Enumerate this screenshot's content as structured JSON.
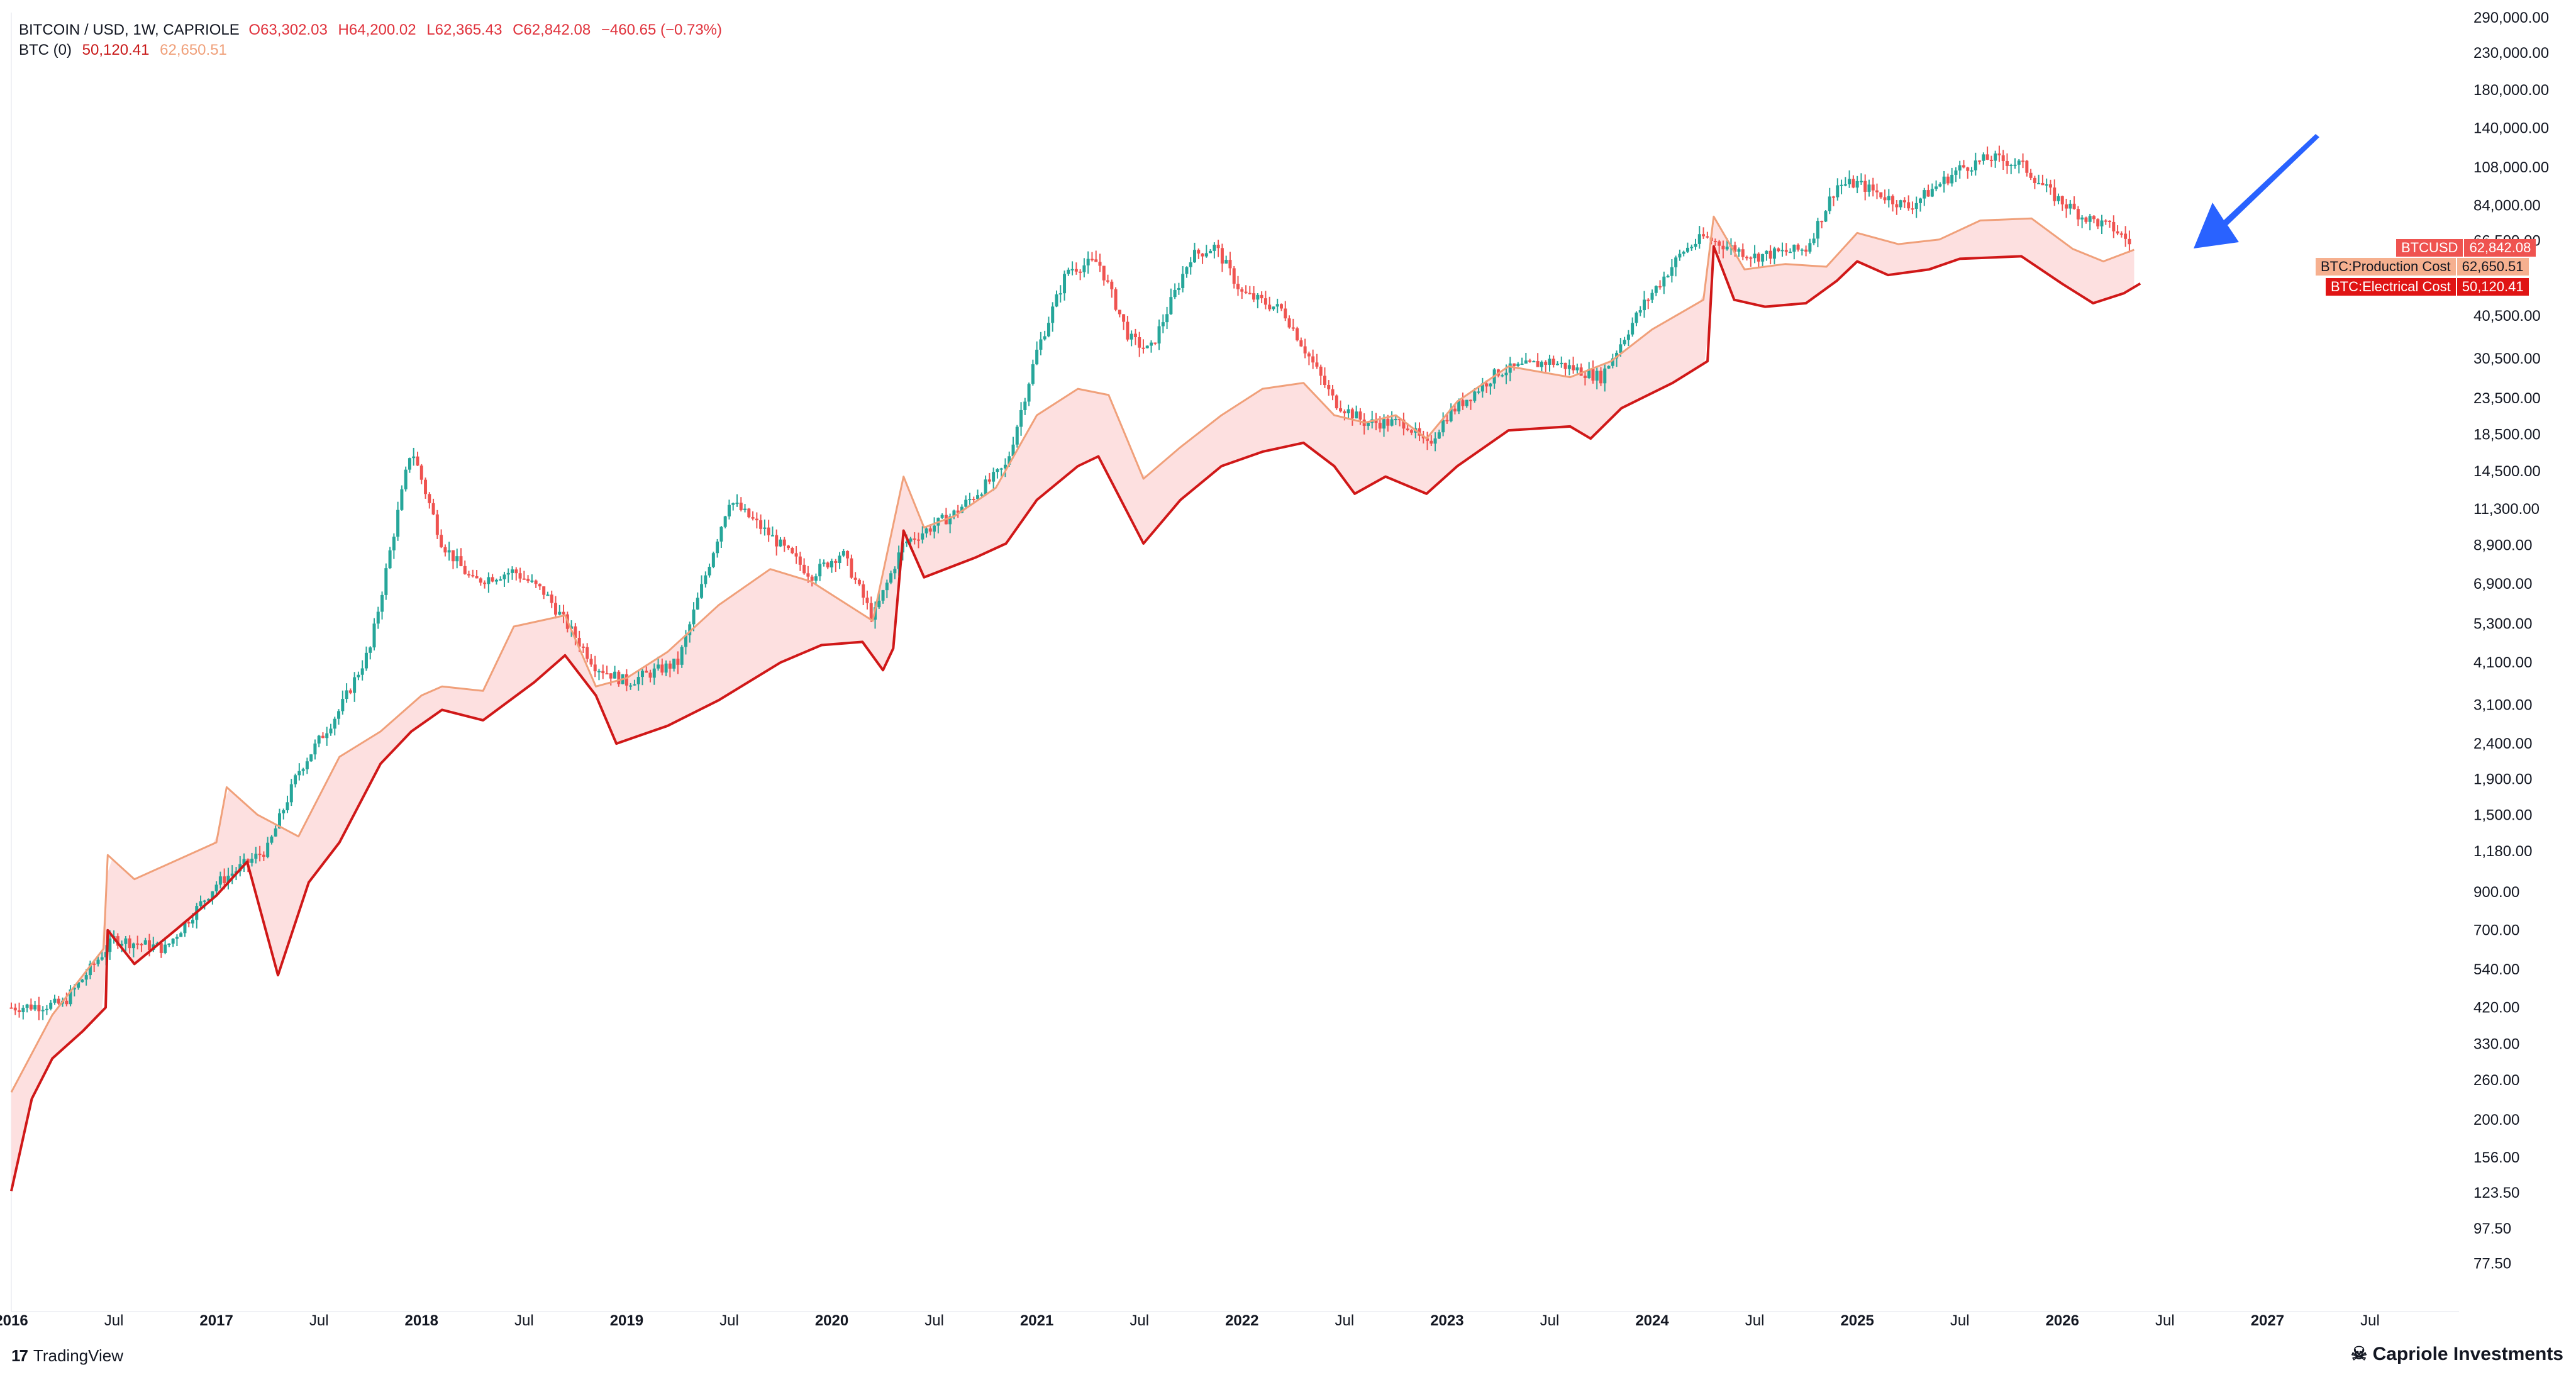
{
  "header": {
    "symbol_line": "BITCOIN / USD, 1W, CAPRIOLE",
    "ohlc": {
      "o": "O63,302.03",
      "h": "H64,200.02",
      "l": "L62,365.43",
      "c": "C62,842.08",
      "chg": "−460.65 (−0.73%)"
    },
    "indicator_name": "BTC (0)",
    "indicator_val1": "50,120.41",
    "indicator_val2": "62,650.51"
  },
  "footer": {
    "left_brand": "TradingView",
    "right_brand": "Capriole Investments"
  },
  "colors": {
    "up": "#26a69a",
    "down": "#ef5350",
    "production": "#f0a07a",
    "electrical": "#d01818",
    "band_fill": "#fde0e0",
    "arrow": "#2962ff"
  },
  "chart_data": {
    "type": "line",
    "y_scale": "log",
    "ylim": [
      60,
      300000
    ],
    "x_range": [
      "2016-01",
      "2027-09"
    ],
    "x_ticks": [
      "2016",
      "Jul",
      "2017",
      "Jul",
      "2018",
      "Jul",
      "2019",
      "Jul",
      "2020",
      "Jul",
      "2021",
      "Jul",
      "2022",
      "Jul",
      "2023",
      "Jul",
      "2024",
      "Jul",
      "2025",
      "Jul",
      "2026",
      "Jul",
      "2027",
      "Jul"
    ],
    "y_ticks": [
      {
        "v": 290000,
        "label": "290,000.00"
      },
      {
        "v": 230000,
        "label": "230,000.00"
      },
      {
        "v": 180000,
        "label": "180,000.00"
      },
      {
        "v": 140000,
        "label": "140,000.00"
      },
      {
        "v": 108000,
        "label": "108,000.00"
      },
      {
        "v": 84000,
        "label": "84,000.00"
      },
      {
        "v": 66500,
        "label": "66,500.00"
      },
      {
        "v": 40500,
        "label": "40,500.00"
      },
      {
        "v": 30500,
        "label": "30,500.00"
      },
      {
        "v": 23500,
        "label": "23,500.00"
      },
      {
        "v": 18500,
        "label": "18,500.00"
      },
      {
        "v": 14500,
        "label": "14,500.00"
      },
      {
        "v": 11300,
        "label": "11,300.00"
      },
      {
        "v": 8900,
        "label": "8,900.00"
      },
      {
        "v": 6900,
        "label": "6,900.00"
      },
      {
        "v": 5300,
        "label": "5,300.00"
      },
      {
        "v": 4100,
        "label": "4,100.00"
      },
      {
        "v": 3100,
        "label": "3,100.00"
      },
      {
        "v": 2400,
        "label": "2,400.00"
      },
      {
        "v": 1900,
        "label": "1,900.00"
      },
      {
        "v": 1500,
        "label": "1,500.00"
      },
      {
        "v": 1180,
        "label": "1,180.00"
      },
      {
        "v": 900,
        "label": "900.00"
      },
      {
        "v": 700,
        "label": "700.00"
      },
      {
        "v": 540,
        "label": "540.00"
      },
      {
        "v": 420,
        "label": "420.00"
      },
      {
        "v": 330,
        "label": "330.00"
      },
      {
        "v": 260,
        "label": "260.00"
      },
      {
        "v": 200,
        "label": "200.00"
      },
      {
        "v": 156,
        "label": "156.00"
      },
      {
        "v": 123.5,
        "label": "123.50"
      },
      {
        "v": 97.5,
        "label": "97.50"
      },
      {
        "v": 77.5,
        "label": "77.50"
      }
    ],
    "series": [
      {
        "name": "BTCUSD",
        "last": "62,842.08",
        "points": [
          [
            2016.0,
            420
          ],
          [
            2016.25,
            430
          ],
          [
            2016.5,
            660
          ],
          [
            2016.75,
            620
          ],
          [
            2017.0,
            950
          ],
          [
            2017.25,
            1200
          ],
          [
            2017.4,
            2000
          ],
          [
            2017.6,
            3000
          ],
          [
            2017.75,
            4500
          ],
          [
            2017.95,
            17000
          ],
          [
            2018.1,
            9000
          ],
          [
            2018.25,
            7000
          ],
          [
            2018.45,
            7500
          ],
          [
            2018.6,
            6500
          ],
          [
            2018.85,
            4000
          ],
          [
            2019.0,
            3600
          ],
          [
            2019.25,
            4100
          ],
          [
            2019.5,
            12000
          ],
          [
            2019.7,
            9500
          ],
          [
            2019.9,
            7300
          ],
          [
            2020.05,
            8500
          ],
          [
            2020.2,
            5500
          ],
          [
            2020.35,
            9000
          ],
          [
            2020.6,
            11000
          ],
          [
            2020.85,
            15000
          ],
          [
            2021.0,
            32000
          ],
          [
            2021.15,
            55000
          ],
          [
            2021.3,
            58000
          ],
          [
            2021.45,
            35000
          ],
          [
            2021.55,
            32000
          ],
          [
            2021.75,
            60000
          ],
          [
            2021.87,
            64000
          ],
          [
            2022.0,
            47000
          ],
          [
            2022.2,
            42000
          ],
          [
            2022.45,
            23000
          ],
          [
            2022.6,
            20000
          ],
          [
            2022.8,
            20000
          ],
          [
            2022.9,
            17000
          ],
          [
            2023.0,
            21000
          ],
          [
            2023.25,
            28000
          ],
          [
            2023.5,
            30000
          ],
          [
            2023.75,
            27000
          ],
          [
            2023.95,
            43000
          ],
          [
            2024.15,
            62000
          ],
          [
            2024.25,
            68000
          ],
          [
            2024.5,
            60000
          ],
          [
            2024.75,
            63000
          ],
          [
            2024.9,
            96000
          ],
          [
            2025.0,
            97000
          ],
          [
            2025.25,
            83000
          ],
          [
            2025.5,
            107000
          ],
          [
            2025.65,
            115000
          ],
          [
            2025.8,
            110000
          ],
          [
            2025.95,
            90000
          ],
          [
            2026.1,
            78000
          ],
          [
            2026.25,
            72000
          ],
          [
            2026.35,
            64000
          ]
        ]
      },
      {
        "name": "BTC:Production Cost",
        "last": "62,650.51",
        "points": [
          [
            2016.0,
            240
          ],
          [
            2016.2,
            400
          ],
          [
            2016.45,
            620
          ],
          [
            2016.47,
            1150
          ],
          [
            2016.6,
            980
          ],
          [
            2017.0,
            1250
          ],
          [
            2017.05,
            1800
          ],
          [
            2017.2,
            1500
          ],
          [
            2017.4,
            1300
          ],
          [
            2017.6,
            2200
          ],
          [
            2017.8,
            2600
          ],
          [
            2018.0,
            3300
          ],
          [
            2018.1,
            3500
          ],
          [
            2018.3,
            3400
          ],
          [
            2018.45,
            5200
          ],
          [
            2018.7,
            5600
          ],
          [
            2018.85,
            3500
          ],
          [
            2019.0,
            3700
          ],
          [
            2019.2,
            4400
          ],
          [
            2019.45,
            6000
          ],
          [
            2019.7,
            7600
          ],
          [
            2019.9,
            7000
          ],
          [
            2020.2,
            5400
          ],
          [
            2020.35,
            14000
          ],
          [
            2020.45,
            10000
          ],
          [
            2020.6,
            10800
          ],
          [
            2020.8,
            13000
          ],
          [
            2021.0,
            21000
          ],
          [
            2021.2,
            25000
          ],
          [
            2021.35,
            24000
          ],
          [
            2021.52,
            13800
          ],
          [
            2021.7,
            17000
          ],
          [
            2021.9,
            21000
          ],
          [
            2022.1,
            25000
          ],
          [
            2022.3,
            26000
          ],
          [
            2022.45,
            21000
          ],
          [
            2022.6,
            20000
          ],
          [
            2022.75,
            21000
          ],
          [
            2022.9,
            18000
          ],
          [
            2023.05,
            23000
          ],
          [
            2023.3,
            29000
          ],
          [
            2023.6,
            27000
          ],
          [
            2023.8,
            30000
          ],
          [
            2024.0,
            37000
          ],
          [
            2024.25,
            45000
          ],
          [
            2024.3,
            78000
          ],
          [
            2024.45,
            55000
          ],
          [
            2024.65,
            57000
          ],
          [
            2024.85,
            56000
          ],
          [
            2025.0,
            70000
          ],
          [
            2025.2,
            65000
          ],
          [
            2025.4,
            67000
          ],
          [
            2025.6,
            76000
          ],
          [
            2025.85,
            77000
          ],
          [
            2026.05,
            63000
          ],
          [
            2026.2,
            58000
          ],
          [
            2026.35,
            62650
          ]
        ]
      },
      {
        "name": "BTC:Electrical Cost",
        "last": "50,120.41",
        "points": [
          [
            2016.0,
            125
          ],
          [
            2016.1,
            230
          ],
          [
            2016.2,
            300
          ],
          [
            2016.35,
            360
          ],
          [
            2016.46,
            420
          ],
          [
            2016.47,
            700
          ],
          [
            2016.6,
            560
          ],
          [
            2016.8,
            700
          ],
          [
            2017.0,
            880
          ],
          [
            2017.15,
            1100
          ],
          [
            2017.3,
            520
          ],
          [
            2017.45,
            960
          ],
          [
            2017.6,
            1250
          ],
          [
            2017.8,
            2100
          ],
          [
            2017.95,
            2600
          ],
          [
            2018.1,
            3000
          ],
          [
            2018.3,
            2800
          ],
          [
            2018.55,
            3600
          ],
          [
            2018.7,
            4300
          ],
          [
            2018.85,
            3300
          ],
          [
            2018.95,
            2400
          ],
          [
            2019.2,
            2700
          ],
          [
            2019.45,
            3200
          ],
          [
            2019.75,
            4100
          ],
          [
            2019.95,
            4600
          ],
          [
            2020.15,
            4700
          ],
          [
            2020.25,
            3900
          ],
          [
            2020.3,
            4500
          ],
          [
            2020.35,
            9800
          ],
          [
            2020.45,
            7200
          ],
          [
            2020.7,
            8200
          ],
          [
            2020.85,
            9000
          ],
          [
            2021.0,
            12000
          ],
          [
            2021.2,
            15000
          ],
          [
            2021.3,
            16000
          ],
          [
            2021.52,
            9000
          ],
          [
            2021.7,
            12000
          ],
          [
            2021.9,
            15000
          ],
          [
            2022.1,
            16500
          ],
          [
            2022.3,
            17500
          ],
          [
            2022.45,
            15000
          ],
          [
            2022.55,
            12500
          ],
          [
            2022.7,
            14000
          ],
          [
            2022.9,
            12500
          ],
          [
            2023.05,
            15000
          ],
          [
            2023.3,
            19000
          ],
          [
            2023.6,
            19500
          ],
          [
            2023.7,
            18000
          ],
          [
            2023.85,
            22000
          ],
          [
            2024.1,
            26000
          ],
          [
            2024.27,
            30000
          ],
          [
            2024.3,
            64000
          ],
          [
            2024.4,
            45000
          ],
          [
            2024.55,
            43000
          ],
          [
            2024.75,
            44000
          ],
          [
            2024.9,
            51000
          ],
          [
            2025.0,
            58000
          ],
          [
            2025.15,
            53000
          ],
          [
            2025.35,
            55000
          ],
          [
            2025.5,
            59000
          ],
          [
            2025.8,
            60000
          ],
          [
            2026.0,
            50000
          ],
          [
            2026.15,
            44000
          ],
          [
            2026.3,
            47000
          ],
          [
            2026.38,
            50120
          ]
        ]
      }
    ]
  }
}
